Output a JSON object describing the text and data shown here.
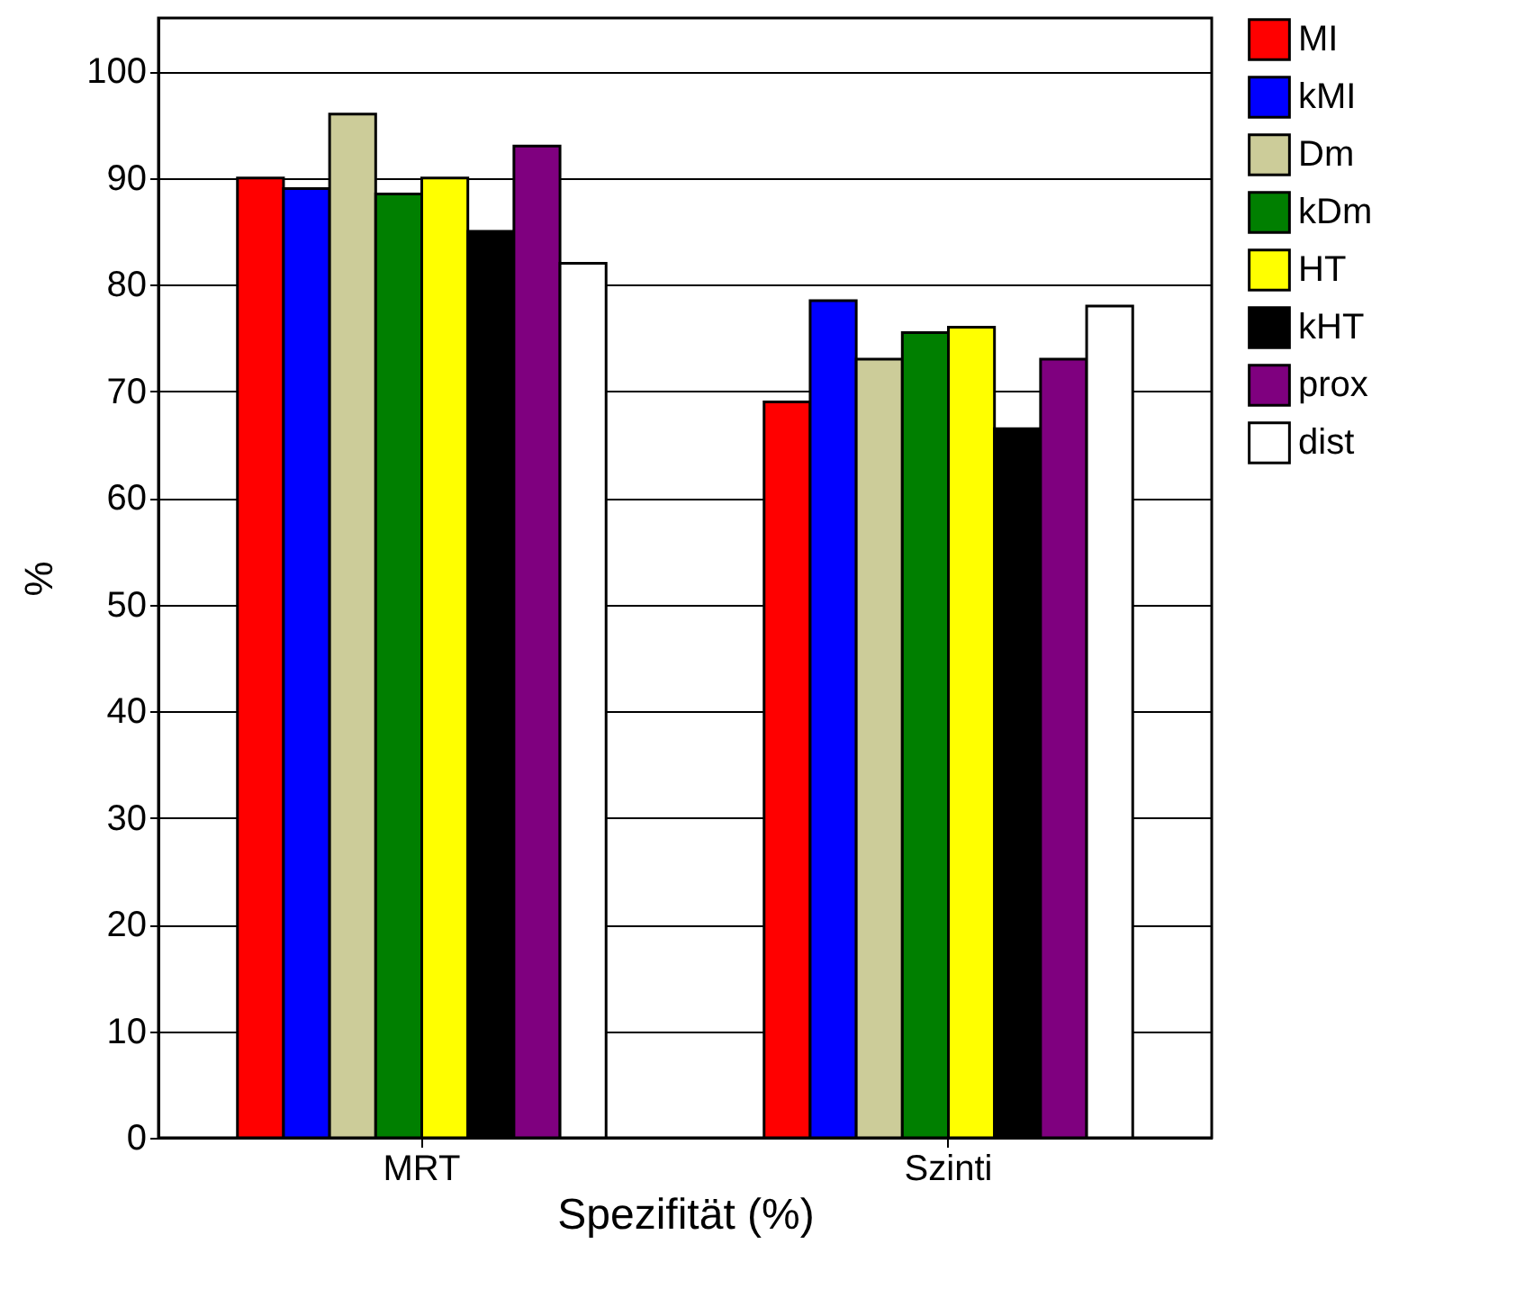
{
  "chart_data": {
    "type": "bar",
    "xlabel": "Spezifität (%)",
    "ylabel": "%",
    "categories": [
      "MRT",
      "Szinti"
    ],
    "series": [
      {
        "name": "MI",
        "color": "#ff0000",
        "values": [
          90,
          69
        ]
      },
      {
        "name": "kMI",
        "color": "#0000ff",
        "values": [
          89,
          78.5
        ]
      },
      {
        "name": "Dm",
        "color": "#cccc99",
        "values": [
          96,
          73
        ]
      },
      {
        "name": "kDm",
        "color": "#007f00",
        "values": [
          88.5,
          75.5
        ]
      },
      {
        "name": "HT",
        "color": "#ffff00",
        "values": [
          90,
          76
        ]
      },
      {
        "name": "kHT",
        "color": "#000000",
        "values": [
          85,
          66.5
        ]
      },
      {
        "name": "prox",
        "color": "#7f007f",
        "values": [
          93,
          73
        ]
      },
      {
        "name": "dist",
        "color": "#ffffff",
        "values": [
          82,
          78
        ]
      }
    ],
    "ylim": [
      0,
      105
    ],
    "yticks": [
      0,
      10,
      20,
      30,
      40,
      50,
      60,
      70,
      80,
      90,
      100
    ],
    "grid": "y",
    "legend": "top right"
  }
}
